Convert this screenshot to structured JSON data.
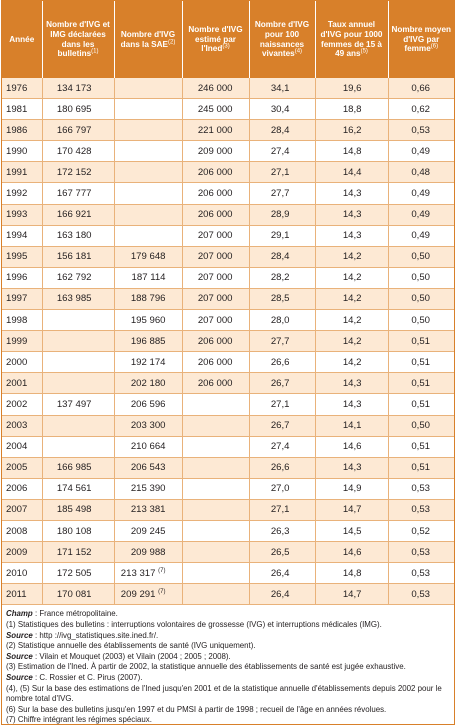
{
  "table": {
    "headers": [
      {
        "text": "Année",
        "note": ""
      },
      {
        "text": "Nombre d'IVG et IMG déclarées dans les bulletins",
        "note": "(1)"
      },
      {
        "text": "Nombre d'IVG dans la SAE",
        "note": "(2)"
      },
      {
        "text": "Nombre d'IVG estimé par l'Ined",
        "note": "(3)"
      },
      {
        "text": "Nombre d'IVG pour 100 naissances vivantes",
        "note": "(4)"
      },
      {
        "text": "Taux annuel d'IVG pour 1000 femmes de 15 à 49 ans",
        "note": "(5)"
      },
      {
        "text": "Nombre moyen d'IVG par femme",
        "note": "(6)"
      }
    ],
    "rows": [
      [
        "1976",
        "134 173",
        "",
        "246 000",
        "34,1",
        "19,6",
        "0,66"
      ],
      [
        "1981",
        "180 695",
        "",
        "245 000",
        "30,4",
        "18,8",
        "0,62"
      ],
      [
        "1986",
        "166 797",
        "",
        "221 000",
        "28,4",
        "16,2",
        "0,53"
      ],
      [
        "1990",
        "170 428",
        "",
        "209 000",
        "27,4",
        "14,8",
        "0,49"
      ],
      [
        "1991",
        "172 152",
        "",
        "206 000",
        "27,1",
        "14,4",
        "0,48"
      ],
      [
        "1992",
        "167 777",
        "",
        "206 000",
        "27,7",
        "14,3",
        "0,49"
      ],
      [
        "1993",
        "166 921",
        "",
        "206 000",
        "28,9",
        "14,3",
        "0,49"
      ],
      [
        "1994",
        "163 180",
        "",
        "207 000",
        "29,1",
        "14,3",
        "0,49"
      ],
      [
        "1995",
        "156 181",
        "179 648",
        "207 000",
        "28,4",
        "14,2",
        "0,50"
      ],
      [
        "1996",
        "162 792",
        "187 114",
        "207 000",
        "28,2",
        "14,2",
        "0,50"
      ],
      [
        "1997",
        "163 985",
        "188 796",
        "207 000",
        "28,5",
        "14,2",
        "0,50"
      ],
      [
        "1998",
        "",
        "195 960",
        "207 000",
        "28,0",
        "14,2",
        "0,50"
      ],
      [
        "1999",
        "",
        "196 885",
        "206 000",
        "27,7",
        "14,2",
        "0,51"
      ],
      [
        "2000",
        "",
        "192 174",
        "206 000",
        "26,6",
        "14,2",
        "0,51"
      ],
      [
        "2001",
        "",
        "202 180",
        "206 000",
        "26,7",
        "14,3",
        "0,51"
      ],
      [
        "2002",
        "137 497",
        "206 596",
        "",
        "27,1",
        "14,3",
        "0,51"
      ],
      [
        "2003",
        "",
        "203 300",
        "",
        "26,7",
        "14,1",
        "0,50"
      ],
      [
        "2004",
        "",
        "210 664",
        "",
        "27,4",
        "14,6",
        "0,51"
      ],
      [
        "2005",
        "166 985",
        "206 543",
        "",
        "26,6",
        "14,3",
        "0,51"
      ],
      [
        "2006",
        "174 561",
        "215 390",
        "",
        "27,0",
        "14,9",
        "0,53"
      ],
      [
        "2007",
        "185 498",
        "213 381",
        "",
        "27,1",
        "14,7",
        "0,53"
      ],
      [
        "2008",
        "180 108",
        "209 245",
        "",
        "26,3",
        "14,5",
        "0,52"
      ],
      [
        "2009",
        "171 152",
        "209 988",
        "",
        "26,5",
        "14,6",
        "0,53"
      ],
      [
        "2010",
        "172 505",
        "213 317",
        "",
        "26,4",
        "14,8",
        "0,53"
      ],
      [
        "2011",
        "170 081",
        "209 291",
        "",
        "26,4",
        "14,7",
        "0,53"
      ]
    ],
    "cell_notes": {
      "2010": "(7)",
      "2011": "(7)"
    }
  },
  "notes": [
    {
      "label": "Champ",
      "text": " : France métropolitaine."
    },
    {
      "label": "",
      "text": "(1) Statistiques des bulletins : interruptions volontaires de grossesse (IVG) et interruptions médicales (IMG)."
    },
    {
      "label": "Source",
      "text": " : http ://ivg_statistiques.site.ined.fr/."
    },
    {
      "label": "",
      "text": "(2) Statistique annuelle des établissements de santé (IVG uniquement)."
    },
    {
      "label": "Source",
      "text": " : Vilain et Mouquet (2003) et Vilain (2004 ; 2005 ; 2008)."
    },
    {
      "label": "",
      "text": "(3) Estimation de l'Ined. À partir de 2002, la statistique annuelle des établissements de santé est jugée exhaustive."
    },
    {
      "label": "Source",
      "text": " : C. Rossier et C. Pirus (2007)."
    },
    {
      "label": "",
      "text": "(4), (5) Sur la base des estimations de l'Ined jusqu'en 2001 et de la statistique annuelle d'établissements depuis 2002 pour le nombre total d'IVG."
    },
    {
      "label": "",
      "text": "(6) Sur la base des bulletins jusqu'en 1997 et du PMSI à partir de 1998 ; recueil de l'âge en années révolues."
    },
    {
      "label": "",
      "text": "(7) Chiffre intégrant les régimes spéciaux."
    }
  ],
  "colors": {
    "header_bg": "#d8802a",
    "alt_row_bg": "#fde9d4",
    "rule": "#e9b27a"
  }
}
